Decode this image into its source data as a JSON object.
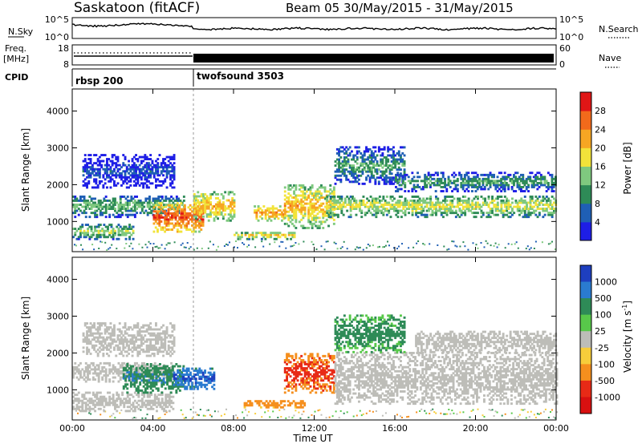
{
  "header": {
    "station": "Saskatoon (fitACF)",
    "beam_period": "Beam 05 30/May/2015 - 31/May/2015"
  },
  "strips": {
    "nsky_label": "N.Sky",
    "nsky_ticks": [
      "10^5",
      "10^0"
    ],
    "nsearch_ticks": [
      "10^5",
      "10^0"
    ],
    "nsearch_label": "N.Search",
    "freq_label": "Freq.",
    "freq_unit": "[MHz]",
    "freq_ticks": [
      "18",
      "8"
    ],
    "nave_ticks": [
      "60",
      "0"
    ],
    "nave_label": "Nave",
    "cpid_label": "CPID",
    "cpid_segments": [
      {
        "name": "rbsp 200",
        "start_hour": 0
      },
      {
        "name": "twofsound 3503",
        "start_hour": 6
      }
    ]
  },
  "axes": {
    "y_label": "Slant Range [km]",
    "x_label": "Time UT",
    "x_ticks": [
      "00:00",
      "04:00",
      "08:00",
      "12:00",
      "16:00",
      "20:00",
      "00:00"
    ],
    "y_ticks": [
      "1000",
      "2000",
      "3000",
      "4000"
    ]
  },
  "power_scale": {
    "label": "Power [dB]",
    "ticks": [
      "4",
      "8",
      "12",
      "16",
      "20",
      "24",
      "28"
    ],
    "colors": [
      "#1e1ee6",
      "#1f5fb5",
      "#2e8b57",
      "#7fc97f",
      "#f2e33a",
      "#f6a623",
      "#f26a1b",
      "#e01616"
    ]
  },
  "velocity_scale": {
    "label": "Velocity [m s",
    "label_sup": "-1",
    "label_end": "]",
    "ticks": [
      "1000",
      "500",
      "100",
      "25",
      "-25",
      "-100",
      "-500",
      "-1000"
    ],
    "colors": [
      "#1e3fbf",
      "#2a7bd0",
      "#2e8b57",
      "#58c84a",
      "#bdbdb8",
      "#f7cd3b",
      "#f58f1e",
      "#e82a16",
      "#d81010"
    ]
  },
  "chart_data": [
    {
      "type": "heatmap",
      "title": "",
      "quantity": "Power",
      "xlabel": "Time UT",
      "ylabel": "Slant Range [km]",
      "xlim": [
        0,
        24
      ],
      "ylim": [
        180,
        4600
      ],
      "colorbar_label": "Power [dB]",
      "bands": [
        {
          "t0": 0.0,
          "t1": 5.5,
          "r0": 1100,
          "r1": 1700,
          "value": 14
        },
        {
          "t0": 0.0,
          "t1": 3.0,
          "r0": 500,
          "r1": 900,
          "value": 16
        },
        {
          "t0": 4.0,
          "t1": 6.5,
          "r0": 700,
          "r1": 1500,
          "value": 28
        },
        {
          "t0": 6.0,
          "t1": 8.0,
          "r0": 1000,
          "r1": 1800,
          "value": 22
        },
        {
          "t0": 8.0,
          "t1": 11.0,
          "r0": 500,
          "r1": 700,
          "value": 20
        },
        {
          "t0": 9.0,
          "t1": 10.5,
          "r0": 1000,
          "r1": 1400,
          "value": 24
        },
        {
          "t0": 10.5,
          "t1": 13.0,
          "r0": 800,
          "r1": 2000,
          "value": 22
        },
        {
          "t0": 12.5,
          "t1": 24.0,
          "r0": 1100,
          "r1": 1700,
          "value": 18
        },
        {
          "t0": 13.0,
          "t1": 16.5,
          "r0": 2000,
          "r1": 3000,
          "value": 12
        },
        {
          "t0": 16.0,
          "t1": 24.0,
          "r0": 1800,
          "r1": 2300,
          "value": 12
        },
        {
          "t0": 0.5,
          "t1": 5.0,
          "r0": 1900,
          "r1": 2800,
          "value": 6
        }
      ]
    },
    {
      "type": "heatmap",
      "title": "",
      "quantity": "Velocity",
      "xlabel": "Time UT",
      "ylabel": "Slant Range [km]",
      "xlim": [
        0,
        24
      ],
      "ylim": [
        180,
        4600
      ],
      "colorbar_label": "Velocity [m s-1]",
      "bands": [
        {
          "t0": 0.0,
          "t1": 5.0,
          "r0": 1200,
          "r1": 1700,
          "value": 0
        },
        {
          "t0": 0.0,
          "t1": 5.0,
          "r0": 400,
          "r1": 900,
          "value": 0
        },
        {
          "t0": 2.5,
          "t1": 5.5,
          "r0": 900,
          "r1": 1700,
          "value": 300
        },
        {
          "t0": 5.0,
          "t1": 7.0,
          "r0": 1000,
          "r1": 1600,
          "value": 800
        },
        {
          "t0": 8.5,
          "t1": 11.5,
          "r0": 500,
          "r1": 700,
          "value": -150
        },
        {
          "t0": 10.5,
          "t1": 13.0,
          "r0": 900,
          "r1": 2000,
          "value": -400
        },
        {
          "t0": 13.0,
          "t1": 24.0,
          "r0": 600,
          "r1": 2000,
          "value": 0
        },
        {
          "t0": 13.0,
          "t1": 16.5,
          "r0": 2000,
          "r1": 3000,
          "value": 100
        },
        {
          "t0": 17.0,
          "t1": 24.0,
          "r0": 2000,
          "r1": 2600,
          "value": 0
        },
        {
          "t0": 0.5,
          "t1": 5.0,
          "r0": 1900,
          "r1": 2800,
          "value": 0
        }
      ]
    }
  ]
}
